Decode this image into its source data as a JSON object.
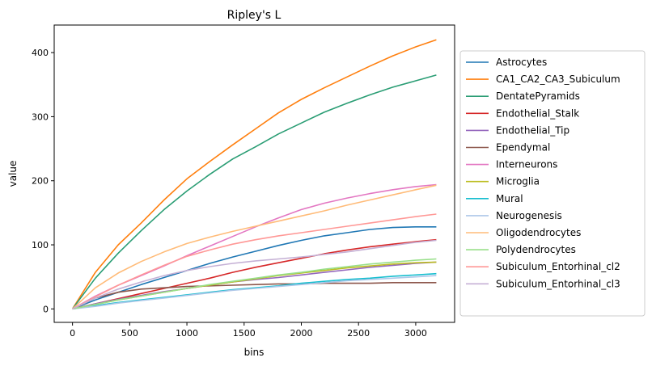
{
  "chart_data": {
    "type": "line",
    "title": "Ripley's L",
    "xlabel": "bins",
    "ylabel": "value",
    "xlim": [
      -160,
      3340
    ],
    "ylim": [
      -21,
      443
    ],
    "xticks": [
      0,
      500,
      1000,
      1500,
      2000,
      2500,
      3000
    ],
    "yticks": [
      0,
      100,
      200,
      300,
      400
    ],
    "grid": false,
    "legend_position": "right-outside",
    "x": [
      0,
      200,
      400,
      600,
      800,
      1000,
      1200,
      1400,
      1600,
      1800,
      2000,
      2200,
      2400,
      2600,
      2800,
      3000,
      3180
    ],
    "series": [
      {
        "name": "Astrocytes",
        "color": "#1f77b4",
        "values": [
          0,
          14,
          26,
          38,
          49,
          60,
          71,
          81,
          90,
          99,
          107,
          114,
          119,
          124,
          127,
          128,
          128
        ]
      },
      {
        "name": "CA1_CA2_CA3_Subiculum",
        "color": "#ff7f0e",
        "values": [
          0,
          57,
          100,
          134,
          170,
          203,
          230,
          256,
          281,
          306,
          327,
          345,
          362,
          379,
          395,
          409,
          420
        ]
      },
      {
        "name": "DentatePyramids",
        "color": "#2a9d74",
        "values": [
          0,
          48,
          87,
          122,
          155,
          184,
          210,
          234,
          253,
          273,
          290,
          307,
          321,
          334,
          346,
          356,
          365
        ]
      },
      {
        "name": "Endothelial_Stalk",
        "color": "#d62728",
        "values": [
          0,
          8,
          16,
          24,
          32,
          40,
          48,
          57,
          65,
          72,
          79,
          86,
          92,
          97,
          101,
          105,
          108
        ]
      },
      {
        "name": "Endothelial_Tip",
        "color": "#9467bd",
        "values": [
          0,
          8,
          15,
          21,
          27,
          32,
          37,
          42,
          46,
          49,
          53,
          57,
          61,
          65,
          68,
          71,
          73
        ]
      },
      {
        "name": "Ependymal",
        "color": "#8c564b",
        "values": [
          0,
          17,
          26,
          31,
          33,
          35,
          36,
          37,
          38,
          39,
          39,
          40,
          40,
          40,
          41,
          41,
          41
        ]
      },
      {
        "name": "Interneurons",
        "color": "#e377c2",
        "values": [
          0,
          20,
          37,
          52,
          67,
          83,
          98,
          113,
          128,
          142,
          155,
          165,
          173,
          180,
          186,
          191,
          194
        ]
      },
      {
        "name": "Microglia",
        "color": "#bcbd22",
        "values": [
          0,
          7,
          14,
          20,
          26,
          32,
          37,
          42,
          47,
          52,
          56,
          60,
          64,
          67,
          70,
          72,
          73
        ]
      },
      {
        "name": "Mural",
        "color": "#17becf",
        "values": [
          0,
          5,
          10,
          14,
          18,
          22,
          26,
          30,
          33,
          36,
          40,
          43,
          46,
          48,
          51,
          53,
          55
        ]
      },
      {
        "name": "Neurogenesis",
        "color": "#aec7e8",
        "values": [
          0,
          4,
          9,
          13,
          17,
          21,
          25,
          29,
          32,
          35,
          38,
          41,
          44,
          46,
          48,
          50,
          52
        ]
      },
      {
        "name": "Oligodendrocytes",
        "color": "#ffbb78",
        "values": [
          0,
          33,
          56,
          74,
          89,
          102,
          112,
          121,
          129,
          137,
          145,
          153,
          162,
          170,
          178,
          186,
          193
        ]
      },
      {
        "name": "Polydendrocytes",
        "color": "#98df8a",
        "values": [
          0,
          7,
          14,
          20,
          26,
          32,
          38,
          43,
          48,
          53,
          57,
          62,
          66,
          70,
          73,
          76,
          78
        ]
      },
      {
        "name": "Subiculum_Entorhinal_cl2",
        "color": "#ff9896",
        "values": [
          0,
          19,
          37,
          53,
          68,
          82,
          92,
          101,
          108,
          114,
          119,
          124,
          129,
          134,
          139,
          144,
          148
        ]
      },
      {
        "name": "Subiculum_Entorhinal_cl3",
        "color": "#c5b0d5",
        "values": [
          0,
          17,
          31,
          42,
          52,
          60,
          66,
          71,
          75,
          78,
          81,
          85,
          89,
          94,
          99,
          104,
          107
        ]
      }
    ]
  }
}
